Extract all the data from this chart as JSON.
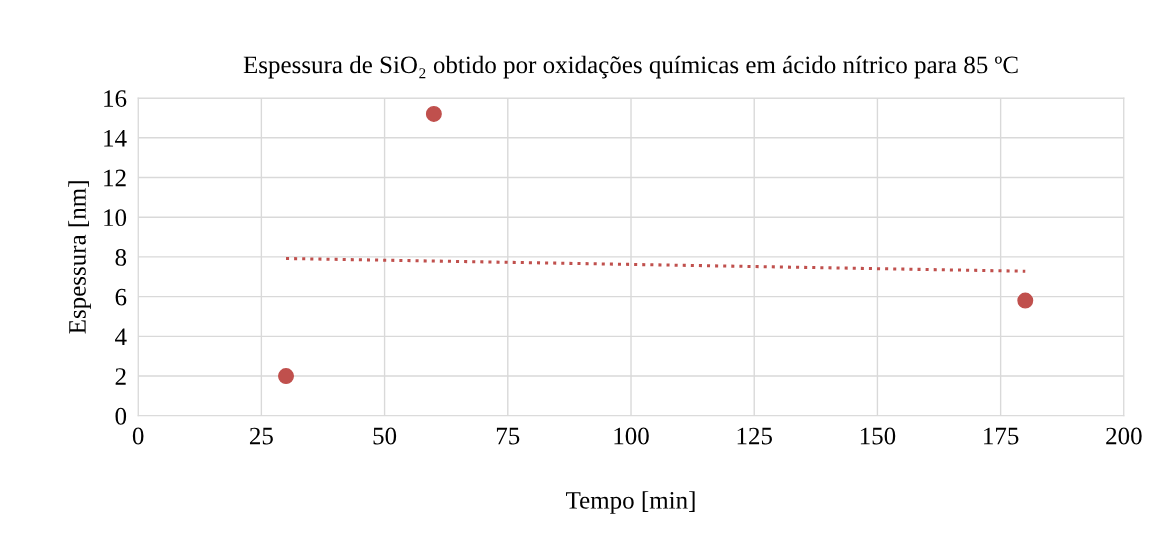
{
  "chart_data": {
    "type": "scatter",
    "title": "Espessura de SiO₂ obtido por oxidações químicas em ácido nítrico para 85 ºC",
    "xlabel": "Tempo [min]",
    "ylabel": "Espessura [nm]",
    "xlim": [
      0,
      200
    ],
    "xticks": [
      0,
      25,
      50,
      75,
      100,
      125,
      150,
      175,
      200
    ],
    "ylim": [
      0,
      16
    ],
    "yticks": [
      0,
      2,
      4,
      6,
      8,
      10,
      12,
      14,
      16
    ],
    "grid": true,
    "series": [
      {
        "color": "#c0504d",
        "marker": "circle",
        "x": [
          30,
          60,
          180
        ],
        "values": [
          2.0,
          15.2,
          5.8
        ]
      },
      {
        "type": "line",
        "color": "#c0504d",
        "line_style": "dotted",
        "marker": "none",
        "x": [
          30,
          180
        ],
        "values": [
          7.92,
          7.28
        ]
      }
    ]
  }
}
